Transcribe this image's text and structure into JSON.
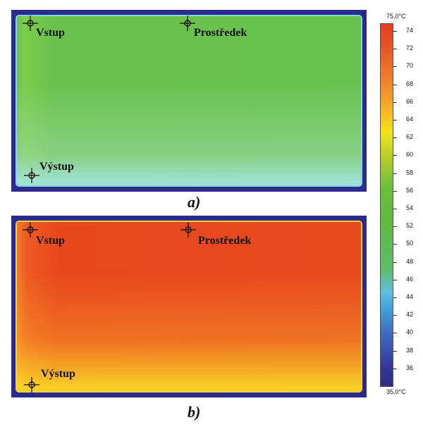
{
  "panels": [
    {
      "caption": "a)",
      "markers": [
        "Vstup",
        "Prostředek",
        "Výstup"
      ]
    },
    {
      "caption": "b)",
      "markers": [
        "Vstup",
        "Prostředek",
        "Výstup"
      ]
    }
  ],
  "scale": {
    "max_label": "75,0°C",
    "min_label": "35,0°C",
    "ticks": [
      "74",
      "72",
      "70",
      "68",
      "66",
      "64",
      "62",
      "60",
      "58",
      "56",
      "54",
      "52",
      "50",
      "48",
      "46",
      "44",
      "42",
      "40",
      "38",
      "36"
    ]
  },
  "colors": {
    "background": "#2d2a8e",
    "panel_a": "#69c24e",
    "panel_b": "#e84a20"
  }
}
